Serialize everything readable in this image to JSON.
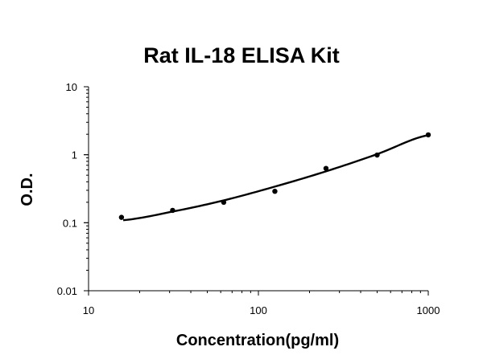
{
  "chart_data": {
    "type": "scatter",
    "title": "Rat IL-18 ELISA Kit",
    "xlabel": "Concentration(pg/ml)",
    "ylabel": "O.D.",
    "xscale": "log",
    "yscale": "log",
    "xlim": [
      10,
      1000
    ],
    "ylim": [
      0.01,
      10
    ],
    "x_ticks": [
      "10",
      "100",
      "1000"
    ],
    "y_ticks": [
      "0.01",
      "0.1",
      "1",
      "10"
    ],
    "grid": false,
    "legend": "none",
    "series": [
      {
        "points": [
          {
            "x": 15.625,
            "y": 0.12
          },
          {
            "x": 31.25,
            "y": 0.152
          },
          {
            "x": 62.5,
            "y": 0.2
          },
          {
            "x": 125,
            "y": 0.29
          },
          {
            "x": 250,
            "y": 0.63
          },
          {
            "x": 500,
            "y": 0.99
          },
          {
            "x": 1000,
            "y": 1.96
          }
        ]
      }
    ],
    "fit_curve": {
      "points": [
        {
          "x": 16,
          "y": 0.109
        },
        {
          "x": 31.25,
          "y": 0.146
        },
        {
          "x": 62.5,
          "y": 0.213
        },
        {
          "x": 125,
          "y": 0.34
        },
        {
          "x": 250,
          "y": 0.57
        },
        {
          "x": 500,
          "y": 1.02
        },
        {
          "x": 1000,
          "y": 1.94
        }
      ]
    },
    "colors": {
      "marker": "#000000",
      "curve": "#000000",
      "axis": "#000000"
    }
  }
}
